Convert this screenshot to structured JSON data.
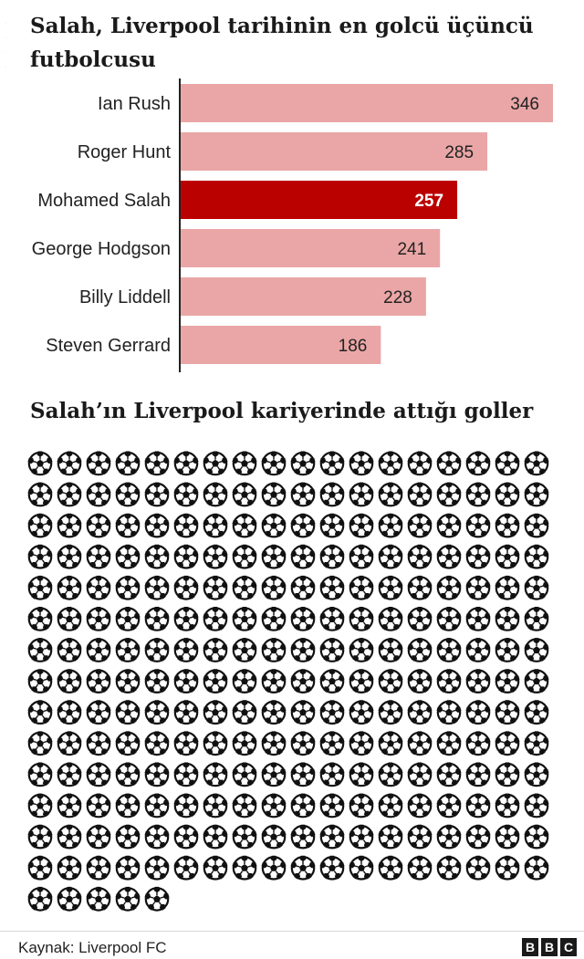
{
  "title": "Salah, Liverpool tarihinin en golcü üçüncü futbolcusu",
  "subtitle": "Salah’ın Liverpool kariyerinde attığı goller",
  "source": "Kaynak: Liverpool FC",
  "logo_text": [
    "B",
    "B",
    "C"
  ],
  "colors": {
    "bar": "#eaa6a6",
    "highlight": "#bb0000",
    "axis": "#222222",
    "label_dark": "#222222",
    "label_light": "#ffffff"
  },
  "icon": "football-icon",
  "chart_data": [
    {
      "type": "bar",
      "orientation": "horizontal",
      "categories": [
        "Ian Rush",
        "Roger Hunt",
        "Mohamed Salah",
        "George Hodgson",
        "Billy Liddell",
        "Steven Gerrard"
      ],
      "values": [
        346,
        285,
        257,
        241,
        228,
        186
      ],
      "highlight": "Mohamed Salah",
      "title": "Salah, Liverpool tarihinin en golcü üçüncü futbolcusu",
      "xlim": [
        0,
        346
      ],
      "grid": false,
      "data_labels": true
    },
    {
      "type": "pictogram",
      "title": "Salah’ın Liverpool kariyerinde attığı goller",
      "value": 257,
      "icon": "football-icon",
      "per_row": 18
    }
  ]
}
